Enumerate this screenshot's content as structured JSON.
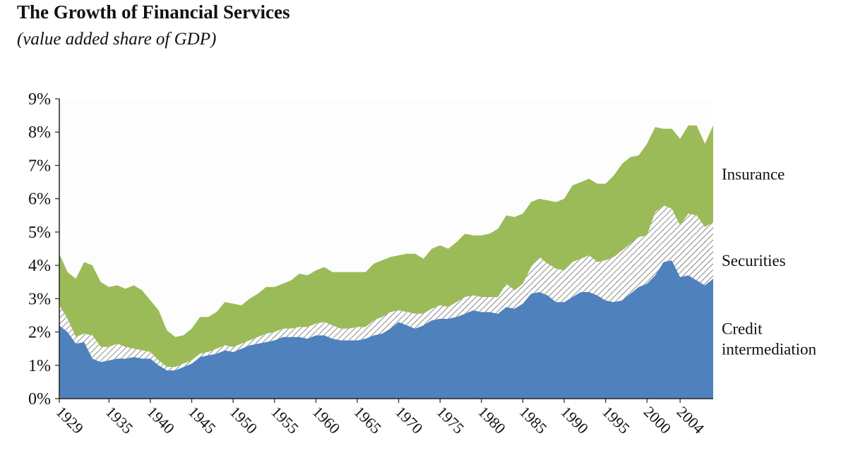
{
  "title": "The Growth of Financial Services",
  "subtitle": "(value added share of GDP)",
  "colors": {
    "credit": "#4f81bd",
    "securities": "#ffffff",
    "insurance": "#9bbb59",
    "plot_bg": "#fdfdfd"
  },
  "chart_data": {
    "type": "area",
    "stacked": true,
    "title": "The Growth of Financial Services",
    "subtitle": "(value added share of GDP)",
    "ylim": [
      0,
      9
    ],
    "y_ticks": [
      "0%",
      "1%",
      "2%",
      "3%",
      "4%",
      "5%",
      "6%",
      "7%",
      "8%",
      "9%"
    ],
    "x_tick_labels": [
      "1929",
      "1935",
      "1940",
      "1945",
      "1950",
      "1955",
      "1960",
      "1965",
      "1970",
      "1975",
      "1980",
      "1985",
      "1990",
      "1995",
      "2000",
      "2004"
    ],
    "x": [
      1929,
      1930,
      1931,
      1932,
      1933,
      1934,
      1935,
      1936,
      1937,
      1938,
      1939,
      1940,
      1941,
      1942,
      1943,
      1944,
      1945,
      1946,
      1947,
      1948,
      1949,
      1950,
      1951,
      1952,
      1953,
      1954,
      1955,
      1956,
      1957,
      1958,
      1959,
      1960,
      1961,
      1962,
      1963,
      1964,
      1965,
      1966,
      1967,
      1968,
      1969,
      1970,
      1971,
      1972,
      1973,
      1974,
      1975,
      1976,
      1977,
      1978,
      1979,
      1980,
      1981,
      1982,
      1983,
      1984,
      1985,
      1986,
      1987,
      1988,
      1989,
      1990,
      1991,
      1992,
      1993,
      1994,
      1995,
      1996,
      1997,
      1998,
      1999,
      2000,
      2001,
      2002,
      2003,
      2004,
      2005,
      2006,
      2007,
      2008
    ],
    "series": [
      {
        "name": "Credit intermediation",
        "label_lines": [
          "Credit",
          "intermediation"
        ],
        "values": [
          2.2,
          2.0,
          1.65,
          1.7,
          1.2,
          1.1,
          1.15,
          1.2,
          1.2,
          1.25,
          1.2,
          1.2,
          1.0,
          0.85,
          0.85,
          0.95,
          1.05,
          1.25,
          1.3,
          1.35,
          1.45,
          1.4,
          1.5,
          1.6,
          1.65,
          1.7,
          1.75,
          1.85,
          1.85,
          1.85,
          1.8,
          1.9,
          1.9,
          1.8,
          1.75,
          1.75,
          1.75,
          1.8,
          1.9,
          1.95,
          2.1,
          2.3,
          2.2,
          2.1,
          2.2,
          2.35,
          2.4,
          2.4,
          2.45,
          2.55,
          2.65,
          2.6,
          2.6,
          2.55,
          2.75,
          2.7,
          2.85,
          3.15,
          3.2,
          3.1,
          2.9,
          2.9,
          3.05,
          3.2,
          3.2,
          3.1,
          2.95,
          2.9,
          2.95,
          3.15,
          3.35,
          3.45,
          3.7,
          4.1,
          4.15,
          3.65,
          3.7,
          3.55,
          3.4,
          3.6
        ]
      },
      {
        "name": "Securities",
        "label_lines": [
          "Securities"
        ],
        "values": [
          0.6,
          0.4,
          0.2,
          0.25,
          0.7,
          0.45,
          0.4,
          0.45,
          0.35,
          0.25,
          0.25,
          0.2,
          0.15,
          0.1,
          0.1,
          0.1,
          0.1,
          0.1,
          0.1,
          0.15,
          0.15,
          0.15,
          0.15,
          0.15,
          0.2,
          0.25,
          0.25,
          0.25,
          0.25,
          0.3,
          0.35,
          0.35,
          0.4,
          0.4,
          0.35,
          0.35,
          0.4,
          0.35,
          0.45,
          0.5,
          0.5,
          0.35,
          0.4,
          0.45,
          0.35,
          0.35,
          0.4,
          0.35,
          0.45,
          0.5,
          0.45,
          0.45,
          0.45,
          0.5,
          0.7,
          0.55,
          0.6,
          0.8,
          1.05,
          0.95,
          1.0,
          0.95,
          1.05,
          1.0,
          1.1,
          1.0,
          1.2,
          1.35,
          1.5,
          1.5,
          1.5,
          1.45,
          1.9,
          1.7,
          1.55,
          1.55,
          1.85,
          1.95,
          1.75,
          1.7
        ]
      },
      {
        "name": "Insurance",
        "label_lines": [
          "Insurance"
        ],
        "values": [
          1.55,
          1.4,
          1.75,
          2.15,
          2.1,
          1.95,
          1.8,
          1.75,
          1.75,
          1.9,
          1.8,
          1.55,
          1.5,
          1.1,
          0.9,
          0.85,
          0.95,
          1.1,
          1.05,
          1.1,
          1.3,
          1.3,
          1.15,
          1.25,
          1.3,
          1.4,
          1.35,
          1.35,
          1.45,
          1.6,
          1.55,
          1.6,
          1.65,
          1.6,
          1.7,
          1.7,
          1.65,
          1.65,
          1.7,
          1.7,
          1.65,
          1.65,
          1.75,
          1.8,
          1.65,
          1.8,
          1.8,
          1.75,
          1.8,
          1.9,
          1.8,
          1.85,
          1.9,
          2.05,
          2.05,
          2.2,
          2.1,
          1.95,
          1.75,
          1.9,
          2.0,
          2.15,
          2.3,
          2.3,
          2.3,
          2.35,
          2.3,
          2.45,
          2.6,
          2.6,
          2.45,
          2.75,
          2.55,
          2.3,
          2.4,
          2.6,
          2.65,
          2.7,
          2.5,
          2.9
        ]
      }
    ]
  }
}
